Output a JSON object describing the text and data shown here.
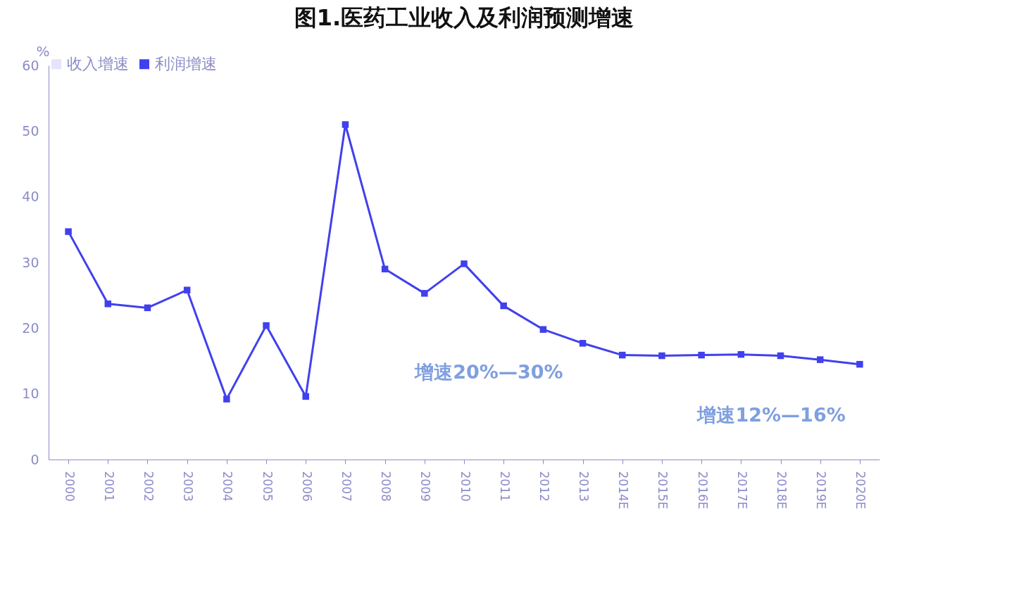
{
  "chart_data": {
    "type": "line",
    "title": "图1.医药工业收入及利润预测增速",
    "ylabel": "%",
    "categories": [
      "2000",
      "2001",
      "2002",
      "2003",
      "2004",
      "2005",
      "2006",
      "2007",
      "2008",
      "2009",
      "2010",
      "2011",
      "2012",
      "2013",
      "2014E",
      "2015E",
      "2016E",
      "2017E",
      "2018E",
      "2019E",
      "2020E"
    ],
    "series": [
      {
        "name": "收入增速",
        "color": "#e4e4fa",
        "values": [
          null,
          null,
          null,
          null,
          null,
          null,
          null,
          null,
          null,
          null,
          null,
          null,
          null,
          null,
          null,
          null,
          null,
          null,
          null,
          null,
          null
        ]
      },
      {
        "name": "利润增速",
        "color": "#4040ee",
        "values": [
          34.7,
          23.7,
          23.1,
          25.8,
          9.2,
          20.4,
          9.6,
          51.0,
          29.0,
          25.3,
          29.8,
          23.4,
          19.8,
          17.7,
          15.9,
          15.8,
          15.9,
          16.0,
          15.8,
          15.2,
          14.5
        ]
      }
    ],
    "ylim": [
      0,
      60
    ],
    "yticks": [
      0,
      10,
      20,
      30,
      40,
      50,
      60
    ],
    "grid": false,
    "legend": "top",
    "marker": "square",
    "line_style": "solid",
    "annotations": [
      "增速20%—30%",
      "增速12%—16%"
    ]
  }
}
